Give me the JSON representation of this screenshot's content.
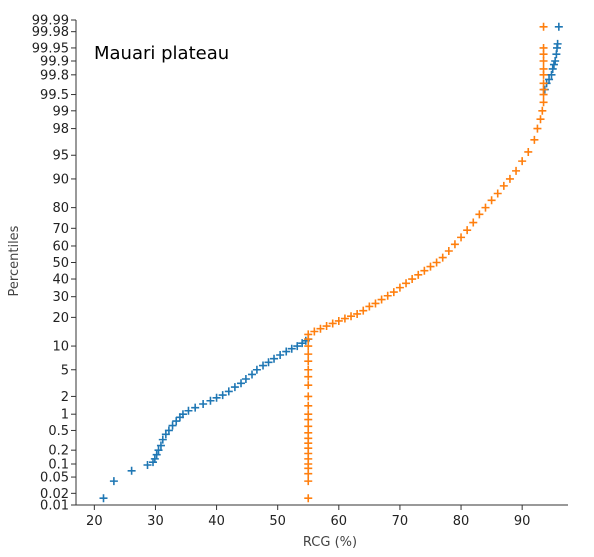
{
  "chart_data": {
    "type": "scatter",
    "title": "Mauari plateau",
    "xlabel": "RCG (%)",
    "ylabel": "Percentiles",
    "y_scale": "probability",
    "xlim": [
      17,
      97.5
    ],
    "ylim": [
      0.01,
      99.99
    ],
    "x_ticks": [
      20,
      30,
      40,
      50,
      60,
      70,
      80,
      90
    ],
    "y_ticks": [
      0.01,
      0.02,
      0.05,
      0.1,
      0.2,
      0.5,
      1,
      2,
      5,
      10,
      20,
      30,
      40,
      50,
      60,
      70,
      80,
      90,
      95,
      98,
      99,
      99.5,
      99.8,
      99.9,
      99.95,
      99.98,
      99.99
    ],
    "y_tick_labels": [
      "0.01",
      "0.02",
      "0.05",
      "0.1",
      "0.2",
      "0.5",
      "1",
      "2",
      "5",
      "10",
      "20",
      "30",
      "40",
      "50",
      "60",
      "70",
      "80",
      "90",
      "95",
      "98",
      "99",
      "99.5",
      "99.8",
      "99.9",
      "99.95",
      "99.98",
      "99.99"
    ],
    "grid": false,
    "legend": "none",
    "marker": "+",
    "series": [
      {
        "color": "#1f77b4",
        "points": [
          [
            21.5,
            0.015
          ],
          [
            23.2,
            0.04
          ],
          [
            26.1,
            0.07
          ],
          [
            28.7,
            0.095
          ],
          [
            29.6,
            0.11
          ],
          [
            29.9,
            0.13
          ],
          [
            30.2,
            0.16
          ],
          [
            30.5,
            0.2
          ],
          [
            30.9,
            0.25
          ],
          [
            31.2,
            0.33
          ],
          [
            31.7,
            0.42
          ],
          [
            32.2,
            0.5
          ],
          [
            32.8,
            0.62
          ],
          [
            33.4,
            0.75
          ],
          [
            34.0,
            0.88
          ],
          [
            34.5,
            1.0
          ],
          [
            35.4,
            1.15
          ],
          [
            36.5,
            1.3
          ],
          [
            37.8,
            1.5
          ],
          [
            39.0,
            1.7
          ],
          [
            40.0,
            1.9
          ],
          [
            41.0,
            2.1
          ],
          [
            42.0,
            2.4
          ],
          [
            43.0,
            2.8
          ],
          [
            44.0,
            3.2
          ],
          [
            44.8,
            3.7
          ],
          [
            45.8,
            4.3
          ],
          [
            46.6,
            5.0
          ],
          [
            47.6,
            5.7
          ],
          [
            48.5,
            6.3
          ],
          [
            49.4,
            7.0
          ],
          [
            50.4,
            7.8
          ],
          [
            51.4,
            8.6
          ],
          [
            52.3,
            9.3
          ],
          [
            53.2,
            10.0
          ],
          [
            54.0,
            10.8
          ],
          [
            54.6,
            11.5
          ],
          [
            55.0,
            12.0
          ],
          [
            93.7,
            99.6
          ],
          [
            94.0,
            99.7
          ],
          [
            94.4,
            99.75
          ],
          [
            94.8,
            99.8
          ],
          [
            95.0,
            99.85
          ],
          [
            95.2,
            99.88
          ],
          [
            95.4,
            99.9
          ],
          [
            95.6,
            99.93
          ],
          [
            95.7,
            99.95
          ],
          [
            95.8,
            99.96
          ],
          [
            96.0,
            99.985
          ]
        ]
      },
      {
        "color": "#ff7f0e",
        "points": [
          [
            55.0,
            0.015
          ],
          [
            55.0,
            0.04
          ],
          [
            55.0,
            0.06
          ],
          [
            55.0,
            0.08
          ],
          [
            55.0,
            0.1
          ],
          [
            55.0,
            0.13
          ],
          [
            55.0,
            0.17
          ],
          [
            55.0,
            0.22
          ],
          [
            55.0,
            0.28
          ],
          [
            55.0,
            0.35
          ],
          [
            55.0,
            0.45
          ],
          [
            55.0,
            0.6
          ],
          [
            55.0,
            0.8
          ],
          [
            55.0,
            1.0
          ],
          [
            55.0,
            1.4
          ],
          [
            55.0,
            2.0
          ],
          [
            55.0,
            3.0
          ],
          [
            55.0,
            4.0
          ],
          [
            55.0,
            5.0
          ],
          [
            55.0,
            6.5
          ],
          [
            55.0,
            8.0
          ],
          [
            55.0,
            10.0
          ],
          [
            55.0,
            12.0
          ],
          [
            55.0,
            13.5
          ],
          [
            56.0,
            14.5
          ],
          [
            57.0,
            15.5
          ],
          [
            58.0,
            16.5
          ],
          [
            59.0,
            17.5
          ],
          [
            60.0,
            18.5
          ],
          [
            61.0,
            19.5
          ],
          [
            62.0,
            20.5
          ],
          [
            63.0,
            21.5
          ],
          [
            64.0,
            23.0
          ],
          [
            65.0,
            25.0
          ],
          [
            66.0,
            26.5
          ],
          [
            67.0,
            28.5
          ],
          [
            68.0,
            30.5
          ],
          [
            69.0,
            32.5
          ],
          [
            70.0,
            35.0
          ],
          [
            71.0,
            37.5
          ],
          [
            72.0,
            40.0
          ],
          [
            73.0,
            42.5
          ],
          [
            74.0,
            45.0
          ],
          [
            75.0,
            47.5
          ],
          [
            76.0,
            50.0
          ],
          [
            77.0,
            53.0
          ],
          [
            78.0,
            57.0
          ],
          [
            79.0,
            61.0
          ],
          [
            80.0,
            65.0
          ],
          [
            81.0,
            69.0
          ],
          [
            82.0,
            73.0
          ],
          [
            83.0,
            77.0
          ],
          [
            84.0,
            80.0
          ],
          [
            85.0,
            83.0
          ],
          [
            86.0,
            85.5
          ],
          [
            87.0,
            88.0
          ],
          [
            88.0,
            90.0
          ],
          [
            89.0,
            92.0
          ],
          [
            90.0,
            94.0
          ],
          [
            91.0,
            95.5
          ],
          [
            92.0,
            97.0
          ],
          [
            92.5,
            98.0
          ],
          [
            93.0,
            98.6
          ],
          [
            93.3,
            99.0
          ],
          [
            93.5,
            99.3
          ],
          [
            93.5,
            99.5
          ],
          [
            93.5,
            99.6
          ],
          [
            93.5,
            99.7
          ],
          [
            93.5,
            99.8
          ],
          [
            93.5,
            99.85
          ],
          [
            93.5,
            99.9
          ],
          [
            93.5,
            99.93
          ],
          [
            93.5,
            99.95
          ],
          [
            93.5,
            99.985
          ]
        ]
      }
    ]
  }
}
